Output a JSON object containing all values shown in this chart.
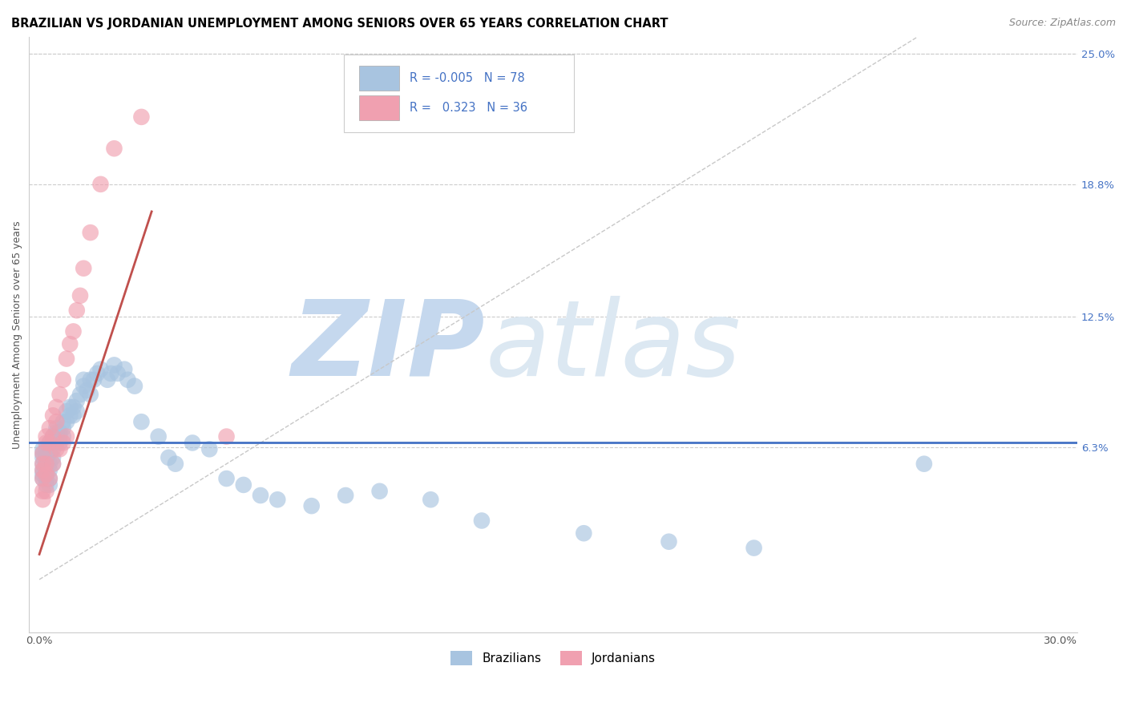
{
  "title": "BRAZILIAN VS JORDANIAN UNEMPLOYMENT AMONG SENIORS OVER 65 YEARS CORRELATION CHART",
  "source": "Source: ZipAtlas.com",
  "ylabel": "Unemployment Among Seniors over 65 years",
  "xlim": [
    -0.003,
    0.305
  ],
  "ylim": [
    -0.025,
    0.258
  ],
  "ytick_right": [
    0.063,
    0.125,
    0.188,
    0.25
  ],
  "ytick_right_labels": [
    "6.3%",
    "12.5%",
    "18.8%",
    "25.0%"
  ],
  "brazil_color": "#a8c4e0",
  "jordan_color": "#f0a0b0",
  "brazil_line_color": "#4472c4",
  "jordan_line_color": "#c0504d",
  "diag_line_color": "#c8c8c8",
  "brazil_x": [
    0.001,
    0.001,
    0.001,
    0.001,
    0.001,
    0.001,
    0.001,
    0.002,
    0.002,
    0.002,
    0.002,
    0.002,
    0.002,
    0.002,
    0.003,
    0.003,
    0.003,
    0.003,
    0.003,
    0.003,
    0.004,
    0.004,
    0.004,
    0.004,
    0.004,
    0.005,
    0.005,
    0.005,
    0.005,
    0.006,
    0.006,
    0.006,
    0.007,
    0.007,
    0.007,
    0.008,
    0.008,
    0.009,
    0.009,
    0.01,
    0.01,
    0.011,
    0.011,
    0.012,
    0.013,
    0.013,
    0.014,
    0.015,
    0.015,
    0.016,
    0.017,
    0.018,
    0.02,
    0.021,
    0.022,
    0.023,
    0.025,
    0.026,
    0.028,
    0.03,
    0.035,
    0.038,
    0.04,
    0.045,
    0.05,
    0.055,
    0.06,
    0.065,
    0.07,
    0.08,
    0.09,
    0.1,
    0.115,
    0.13,
    0.16,
    0.185,
    0.21,
    0.26
  ],
  "brazil_y": [
    0.06,
    0.055,
    0.058,
    0.062,
    0.05,
    0.048,
    0.052,
    0.058,
    0.062,
    0.055,
    0.05,
    0.052,
    0.048,
    0.045,
    0.06,
    0.065,
    0.055,
    0.052,
    0.048,
    0.045,
    0.062,
    0.068,
    0.065,
    0.058,
    0.055,
    0.065,
    0.07,
    0.072,
    0.068,
    0.065,
    0.07,
    0.068,
    0.072,
    0.075,
    0.068,
    0.075,
    0.08,
    0.078,
    0.082,
    0.082,
    0.078,
    0.085,
    0.08,
    0.088,
    0.092,
    0.095,
    0.09,
    0.095,
    0.088,
    0.095,
    0.098,
    0.1,
    0.095,
    0.098,
    0.102,
    0.098,
    0.1,
    0.095,
    0.092,
    0.075,
    0.068,
    0.058,
    0.055,
    0.065,
    0.062,
    0.048,
    0.045,
    0.04,
    0.038,
    0.035,
    0.04,
    0.042,
    0.038,
    0.028,
    0.022,
    0.018,
    0.015,
    0.055
  ],
  "jordan_x": [
    0.001,
    0.001,
    0.001,
    0.001,
    0.001,
    0.001,
    0.002,
    0.002,
    0.002,
    0.002,
    0.002,
    0.003,
    0.003,
    0.003,
    0.004,
    0.004,
    0.004,
    0.005,
    0.005,
    0.005,
    0.006,
    0.006,
    0.007,
    0.007,
    0.008,
    0.008,
    0.009,
    0.01,
    0.011,
    0.012,
    0.013,
    0.015,
    0.018,
    0.022,
    0.03,
    0.055
  ],
  "jordan_y": [
    0.06,
    0.055,
    0.052,
    0.048,
    0.042,
    0.038,
    0.068,
    0.065,
    0.055,
    0.05,
    0.042,
    0.072,
    0.065,
    0.048,
    0.078,
    0.068,
    0.055,
    0.082,
    0.075,
    0.062,
    0.088,
    0.062,
    0.095,
    0.065,
    0.105,
    0.068,
    0.112,
    0.118,
    0.128,
    0.135,
    0.148,
    0.165,
    0.188,
    0.205,
    0.22,
    0.068
  ],
  "watermark_zip": "ZIP",
  "watermark_atlas": "atlas",
  "watermark_color": "#dde8f5",
  "title_fontsize": 10.5,
  "axis_label_fontsize": 9,
  "tick_fontsize": 9.5
}
